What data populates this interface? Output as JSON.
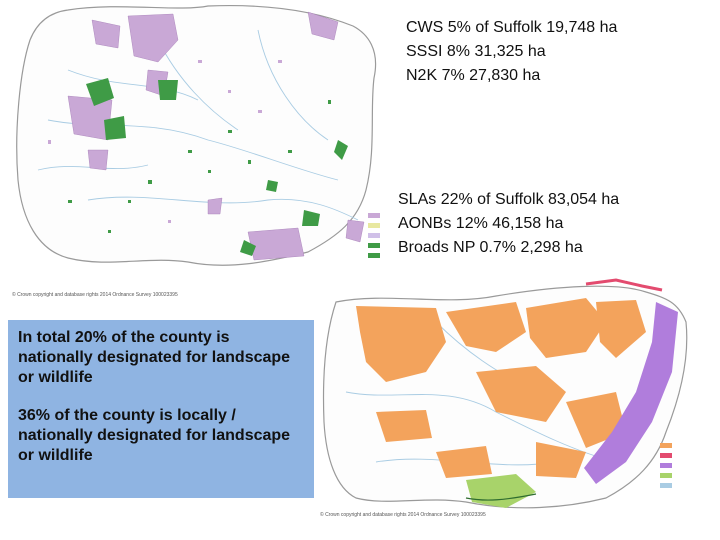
{
  "stats_top": [
    "CWS 5% of Suffolk 19,748 ha",
    "SSSI 8% 31,325 ha",
    "N2K 7% 27,830 ha"
  ],
  "stats_bottom": [
    "SLAs 22% of Suffolk 83,054 ha",
    "AONBs 12% 46,158 ha",
    "Broads NP 0.7% 2,298 ha"
  ],
  "summary": {
    "paragraph_1": "In total 20% of the county is nationally designated for landscape or wildlife",
    "paragraph_2": "36% of the county is locally / nationally designated for landscape or wildlife"
  },
  "credits": {
    "top": "© Crown copyright and database rights 2014 Ordnance Survey 100023395",
    "bottom": "© Crown copyright and database rights 2014 Ordnance Survey 100023395"
  },
  "colors": {
    "boundary": "#9a9a9a",
    "rivers": "#a9cce3",
    "cws": "#c9a8d6",
    "sssi": "#3f9b46",
    "sla": "#f3a35c",
    "aonb": "#b07ddc",
    "broads": "#a8d36a",
    "broads_edge": "#e34b6f",
    "summary_bg": "#8fb4e2"
  }
}
